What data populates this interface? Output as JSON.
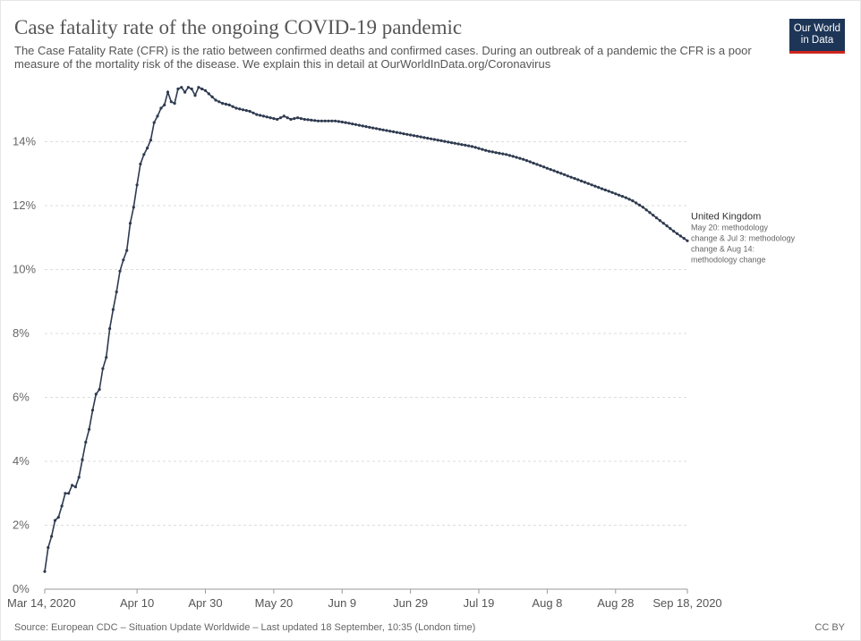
{
  "header": {
    "title": "Case fatality rate of the ongoing COVID-19 pandemic",
    "subtitle": "The Case Fatality Rate (CFR) is the ratio between confirmed deaths and confirmed cases. During an outbreak of a pandemic the CFR is a poor measure of the mortality risk of the disease. We explain this in detail at OurWorldInData.org/Coronavirus",
    "logo_line1": "Our World",
    "logo_line2": "in Data"
  },
  "footer": {
    "source": "Source: European CDC – Situation Update Worldwide – Last updated 18 September, 10:35 (London time)",
    "license": "CC BY"
  },
  "colors": {
    "line": "#2e3a4f",
    "grid": "#dddddd",
    "logo_bg": "#1d3557",
    "logo_accent": "#ce261e"
  },
  "chart_data": {
    "type": "line",
    "title": "Case fatality rate of the ongoing COVID-19 pandemic",
    "xlabel": "",
    "ylabel": "",
    "ylim": [
      0,
      14
    ],
    "y_ticks": [
      {
        "value": 0,
        "label": "0%"
      },
      {
        "value": 2,
        "label": "2%"
      },
      {
        "value": 4,
        "label": "4%"
      },
      {
        "value": 6,
        "label": "6%"
      },
      {
        "value": 8,
        "label": "8%"
      },
      {
        "value": 10,
        "label": "10%"
      },
      {
        "value": 12,
        "label": "12%"
      },
      {
        "value": 14,
        "label": "14%"
      }
    ],
    "x_range_days": [
      0,
      188
    ],
    "x_ticks": [
      {
        "day": 0,
        "label": "Mar 14, 2020"
      },
      {
        "day": 27,
        "label": "Apr 10"
      },
      {
        "day": 47,
        "label": "Apr 30"
      },
      {
        "day": 67,
        "label": "May 20"
      },
      {
        "day": 87,
        "label": "Jun 9"
      },
      {
        "day": 107,
        "label": "Jun 29"
      },
      {
        "day": 127,
        "label": "Jul 19"
      },
      {
        "day": 147,
        "label": "Aug 8"
      },
      {
        "day": 167,
        "label": "Aug 28"
      },
      {
        "day": 188,
        "label": "Sep 18, 2020"
      }
    ],
    "series": [
      {
        "name": "United Kingdom",
        "note": "May 20: methodology change & Jul 3: methodology change & Aug 14: methodology change",
        "note_lines": [
          "May 20: methodology",
          "change & Jul 3: methodology",
          "change & Aug 14:",
          "methodology change"
        ],
        "anchors": [
          [
            0,
            0.55
          ],
          [
            1,
            1.3
          ],
          [
            2,
            1.65
          ],
          [
            3,
            2.15
          ],
          [
            4,
            2.25
          ],
          [
            5,
            2.6
          ],
          [
            6,
            3.0
          ],
          [
            7,
            3.0
          ],
          [
            8,
            3.25
          ],
          [
            9,
            3.2
          ],
          [
            10,
            3.5
          ],
          [
            11,
            4.05
          ],
          [
            12,
            4.6
          ],
          [
            13,
            5.0
          ],
          [
            14,
            5.6
          ],
          [
            15,
            6.1
          ],
          [
            16,
            6.25
          ],
          [
            17,
            6.9
          ],
          [
            18,
            7.25
          ],
          [
            19,
            8.15
          ],
          [
            20,
            8.75
          ],
          [
            21,
            9.3
          ],
          [
            22,
            9.95
          ],
          [
            23,
            10.3
          ],
          [
            24,
            10.6
          ],
          [
            25,
            11.45
          ],
          [
            26,
            11.95
          ],
          [
            27,
            12.65
          ],
          [
            28,
            13.3
          ],
          [
            29,
            13.6
          ],
          [
            30,
            13.8
          ],
          [
            31,
            14.05
          ],
          [
            32,
            14.6
          ],
          [
            33,
            14.8
          ],
          [
            34,
            15.05
          ],
          [
            35,
            15.15
          ],
          [
            36,
            15.55
          ],
          [
            37,
            15.25
          ],
          [
            38,
            15.2
          ],
          [
            39,
            15.65
          ],
          [
            40,
            15.7
          ],
          [
            41,
            15.55
          ],
          [
            42,
            15.7
          ],
          [
            43,
            15.65
          ],
          [
            44,
            15.45
          ],
          [
            45,
            15.7
          ],
          [
            46,
            15.65
          ],
          [
            47,
            15.6
          ],
          [
            48,
            15.5
          ],
          [
            50,
            15.3
          ],
          [
            52,
            15.2
          ],
          [
            54,
            15.15
          ],
          [
            56,
            15.05
          ],
          [
            58,
            15.0
          ],
          [
            60,
            14.95
          ],
          [
            62,
            14.85
          ],
          [
            64,
            14.8
          ],
          [
            66,
            14.75
          ],
          [
            68,
            14.7
          ],
          [
            70,
            14.8
          ],
          [
            72,
            14.7
          ],
          [
            74,
            14.75
          ],
          [
            76,
            14.7
          ],
          [
            80,
            14.65
          ],
          [
            85,
            14.65
          ],
          [
            88,
            14.6
          ],
          [
            95,
            14.45
          ],
          [
            100,
            14.35
          ],
          [
            105,
            14.25
          ],
          [
            110,
            14.15
          ],
          [
            115,
            14.05
          ],
          [
            120,
            13.95
          ],
          [
            125,
            13.85
          ],
          [
            130,
            13.7
          ],
          [
            135,
            13.6
          ],
          [
            140,
            13.45
          ],
          [
            145,
            13.25
          ],
          [
            150,
            13.05
          ],
          [
            155,
            12.85
          ],
          [
            160,
            12.65
          ],
          [
            165,
            12.45
          ],
          [
            170,
            12.25
          ],
          [
            172,
            12.15
          ],
          [
            175,
            11.95
          ],
          [
            178,
            11.7
          ],
          [
            181,
            11.45
          ],
          [
            184,
            11.2
          ],
          [
            186,
            11.05
          ],
          [
            188,
            10.9
          ]
        ]
      }
    ]
  }
}
